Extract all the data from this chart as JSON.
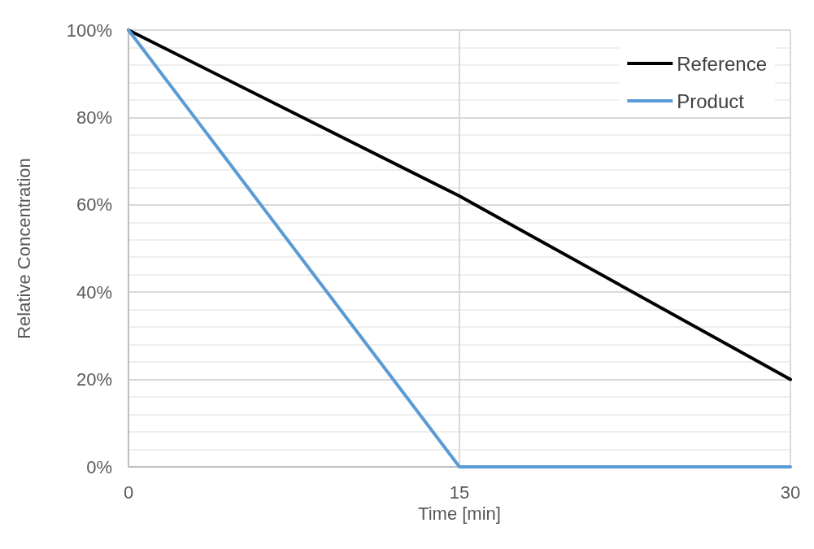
{
  "chart_data": {
    "type": "line",
    "xlabel": "Time [min]",
    "ylabel": "Relative Concentration",
    "x": [
      0,
      15,
      30
    ],
    "series": [
      {
        "name": "Reference",
        "color": "#000000",
        "values": [
          100,
          62,
          20
        ]
      },
      {
        "name": "Product",
        "color": "#5b9bd5",
        "values": [
          100,
          0,
          0
        ]
      }
    ],
    "xlim": [
      0,
      30
    ],
    "xticks": [
      0,
      15,
      30
    ],
    "ylim": [
      0,
      100
    ],
    "yticks": [
      {
        "value": 0,
        "label": "0%"
      },
      {
        "value": 20,
        "label": "20%"
      },
      {
        "value": 40,
        "label": "40%"
      },
      {
        "value": 60,
        "label": "60%"
      },
      {
        "value": 80,
        "label": "80%"
      },
      {
        "value": 100,
        "label": "100%"
      }
    ],
    "grid": true,
    "legend": "top right",
    "marker": "none",
    "line_style": "solid"
  }
}
